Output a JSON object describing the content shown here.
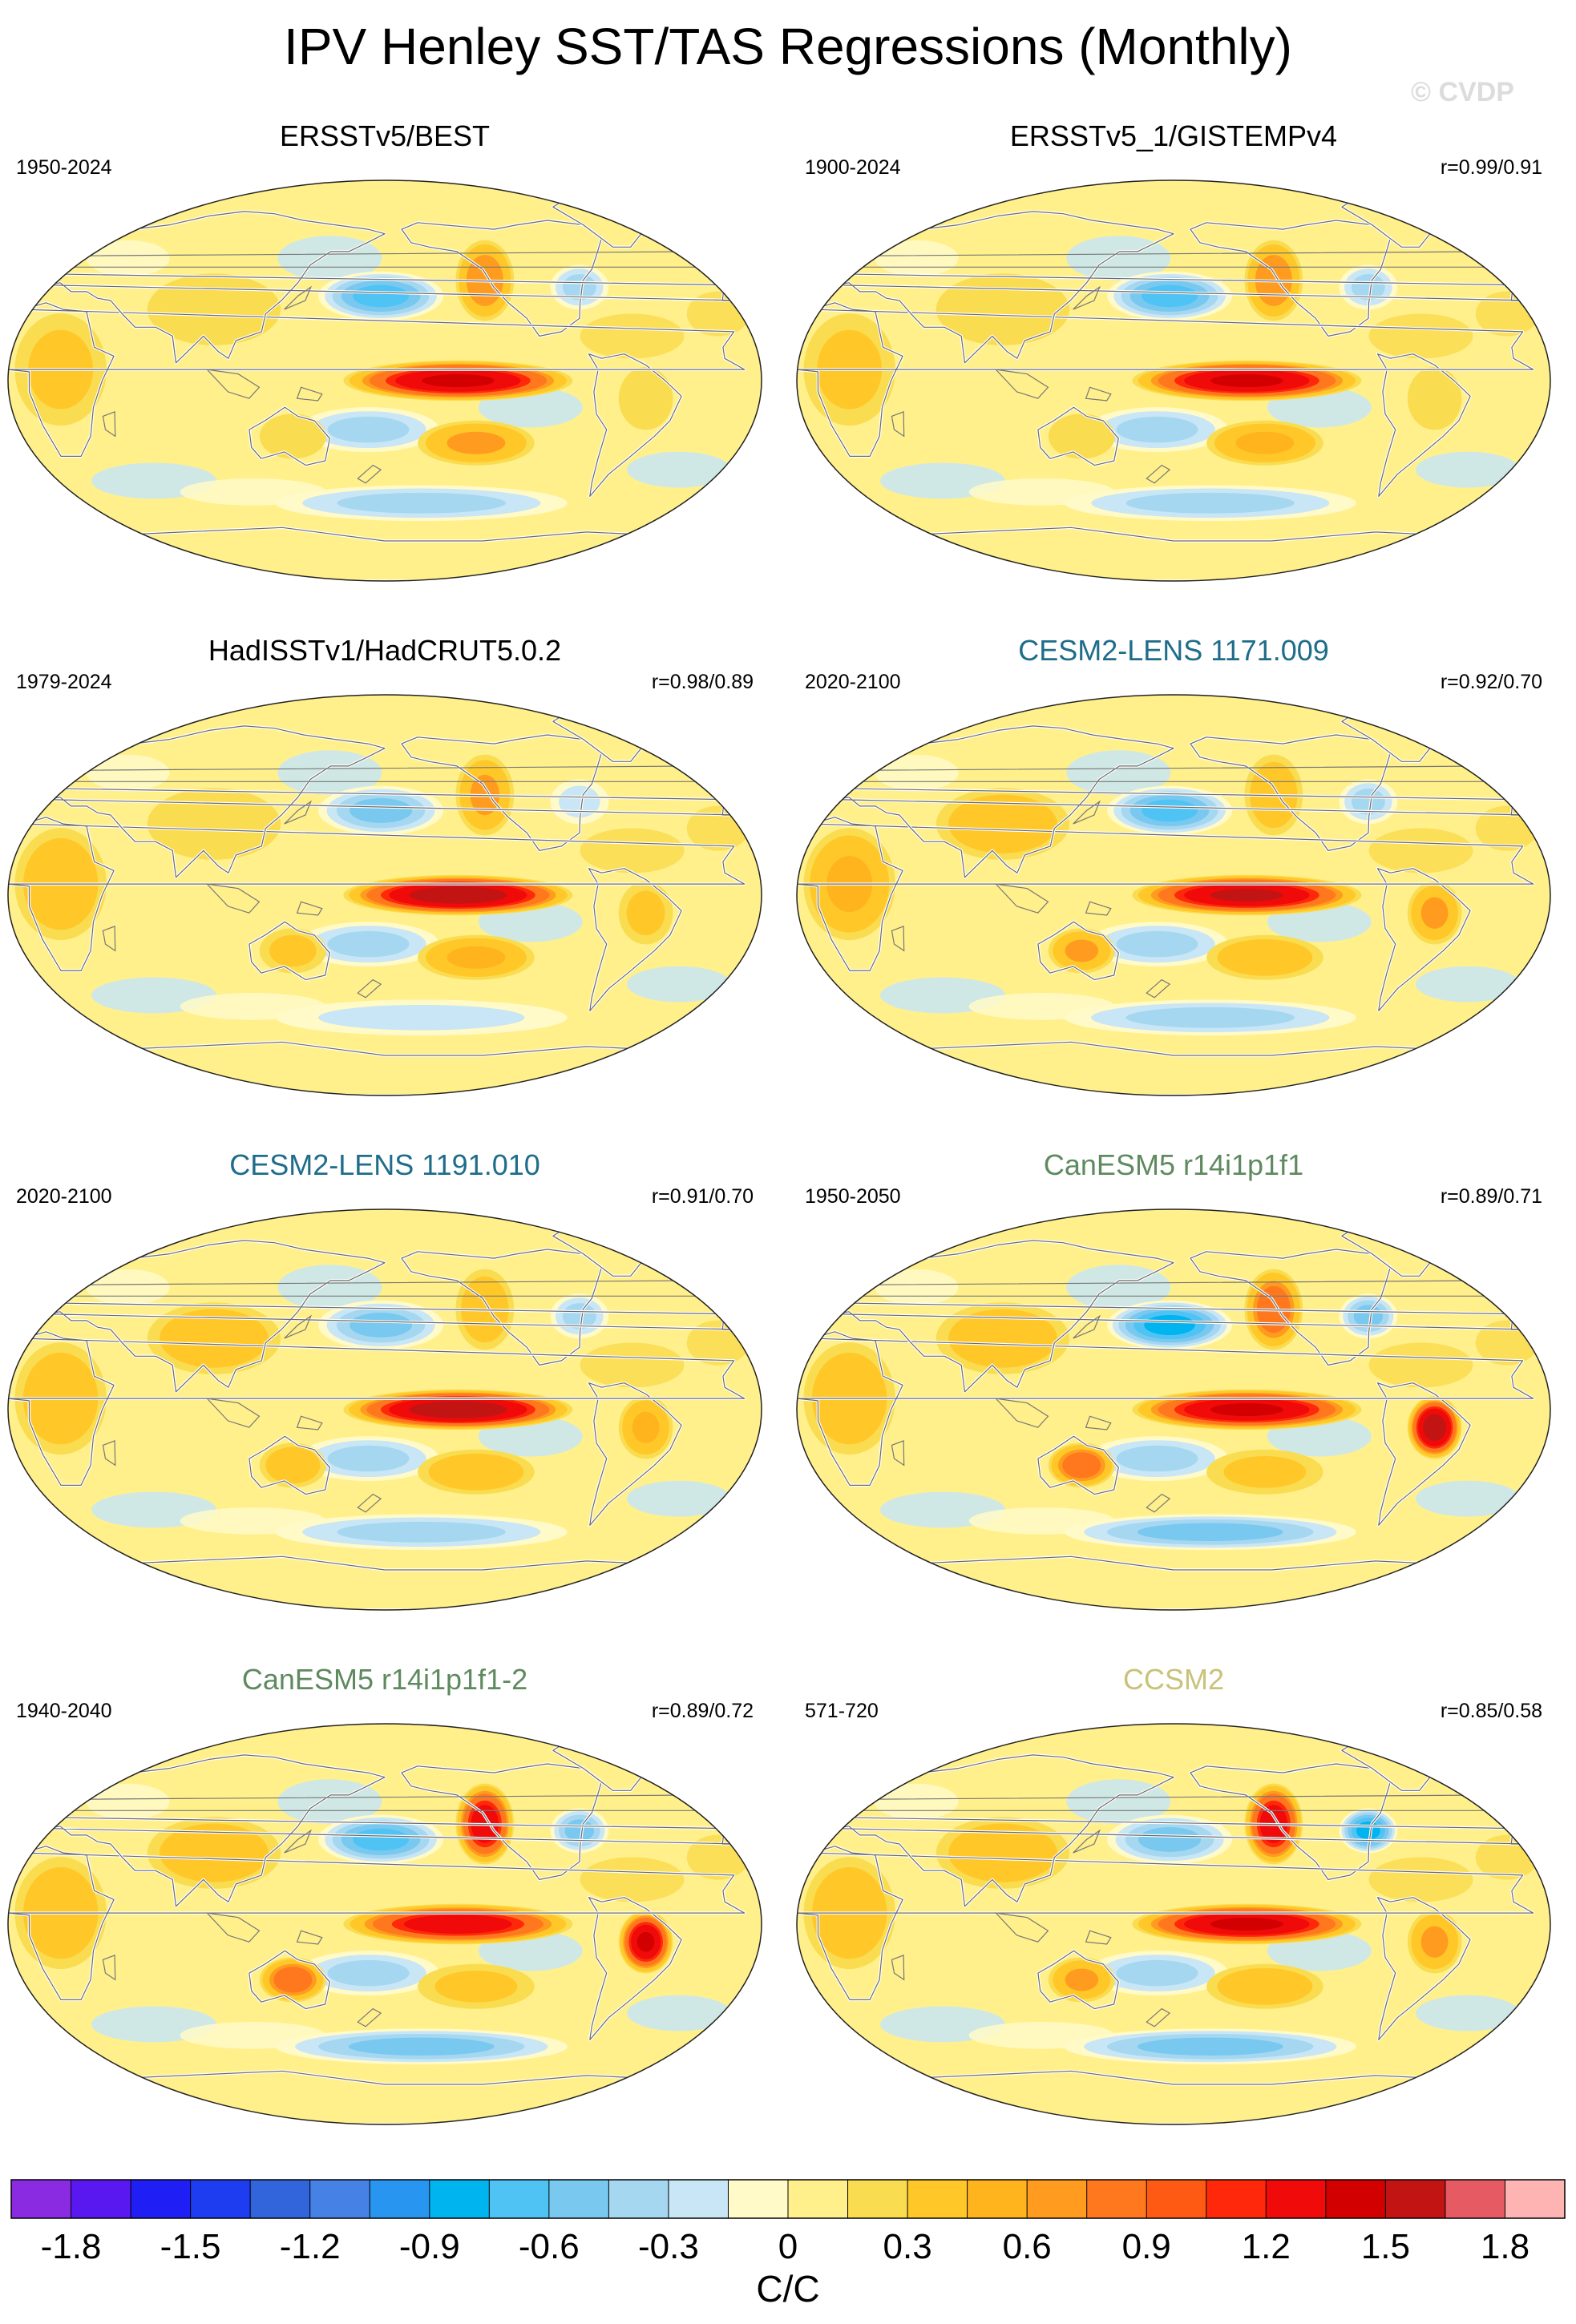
{
  "figure": {
    "title": "IPV Henley SST/TAS Regressions (Monthly)",
    "watermark": "© CVDP"
  },
  "chart_data": [
    {
      "type": "heatmap",
      "title": "ERSSTv5/BEST",
      "years": "1950-2024",
      "corr": "",
      "title_color": "#000000",
      "hot": {
        "nino": 1.45,
        "npac": 0.7,
        "spac": 0.6,
        "asia": 0.15,
        "aus": 0.25,
        "samer": 0.2,
        "africa": 0.3
      },
      "cold": {
        "kuro": -0.65,
        "sw": -0.45,
        "nam": -0.35,
        "so": -0.35
      }
    },
    {
      "type": "heatmap",
      "title": "ERSSTv5_1/GISTEMPv4",
      "years": "1900-2024",
      "corr": "r=0.99/0.91",
      "title_color": "#000000",
      "hot": {
        "nino": 1.35,
        "npac": 0.7,
        "spac": 0.55,
        "asia": 0.15,
        "aus": 0.25,
        "samer": 0.2,
        "africa": 0.3
      },
      "cold": {
        "kuro": -0.75,
        "sw": -0.45,
        "nam": -0.35,
        "so": -0.35
      }
    },
    {
      "type": "heatmap",
      "title": "HadISSTv1/HadCRUT5.0.2",
      "years": "1979-2024",
      "corr": "r=0.98/0.89",
      "title_color": "#000000",
      "hot": {
        "nino": 1.6,
        "npac": 0.6,
        "spac": 0.5,
        "asia": 0.25,
        "aus": 0.3,
        "samer": 0.3,
        "africa": 0.35
      },
      "cold": {
        "kuro": -0.5,
        "sw": -0.4,
        "nam": -0.2,
        "so": -0.3
      }
    },
    {
      "type": "heatmap",
      "title": "CESM2-LENS 1171.009",
      "years": "2020-2100",
      "corr": "r=0.92/0.70",
      "title_color": "#1e6d8a",
      "hot": {
        "nino": 1.5,
        "npac": 0.35,
        "spac": 0.4,
        "asia": 0.35,
        "aus": 0.6,
        "samer": 0.6,
        "africa": 0.5
      },
      "cold": {
        "kuro": -0.7,
        "sw": -0.35,
        "nam": -0.4,
        "so": -0.45
      }
    },
    {
      "type": "heatmap",
      "title": "CESM2-LENS 1191.010",
      "years": "2020-2100",
      "corr": "r=0.91/0.70",
      "title_color": "#1e6d8a",
      "hot": {
        "nino": 1.55,
        "npac": 0.45,
        "spac": 0.4,
        "asia": 0.4,
        "aus": 0.35,
        "samer": 0.5,
        "africa": 0.45
      },
      "cold": {
        "kuro": -0.55,
        "sw": -0.4,
        "nam": -0.4,
        "so": -0.4
      }
    },
    {
      "type": "heatmap",
      "title": "CanESM5 r14i1p1f1",
      "years": "1950-2050",
      "corr": "r=0.89/0.71",
      "title_color": "#5f8a5f",
      "hot": {
        "nino": 1.45,
        "npac": 0.9,
        "spac": 0.3,
        "asia": 0.4,
        "aus": 0.9,
        "samer": 1.6,
        "africa": 0.4
      },
      "cold": {
        "kuro": -0.9,
        "sw": -0.4,
        "nam": -0.5,
        "so": -0.55
      }
    },
    {
      "type": "heatmap",
      "title": "CanESM5 r14i1p1f1-2",
      "years": "1940-2040",
      "corr": "r=0.89/0.72",
      "title_color": "#5f8a5f",
      "hot": {
        "nino": 1.3,
        "npac": 1.25,
        "spac": 0.3,
        "asia": 0.4,
        "aus": 0.8,
        "samer": 1.4,
        "africa": 0.4
      },
      "cold": {
        "kuro": -0.75,
        "sw": -0.35,
        "nam": -0.5,
        "so": -0.6
      }
    },
    {
      "type": "heatmap",
      "title": "CCSM2",
      "years": "571-720",
      "corr": "r=0.85/0.58",
      "title_color": "#c9c27a",
      "hot": {
        "nino": 1.45,
        "npac": 1.3,
        "spac": 0.35,
        "asia": 0.35,
        "aus": 0.6,
        "samer": 0.6,
        "africa": 0.45
      },
      "cold": {
        "kuro": -0.5,
        "sw": -0.35,
        "nam": -0.9,
        "so": -0.5
      }
    }
  ],
  "colorbar": {
    "label": "C/C",
    "boundaries": [
      -2.0,
      -1.8,
      -1.65,
      -1.5,
      -1.35,
      -1.2,
      -1.05,
      -0.9,
      -0.75,
      -0.6,
      -0.45,
      -0.3,
      -0.15,
      0,
      0.15,
      0.3,
      0.45,
      0.6,
      0.75,
      0.9,
      1.05,
      1.2,
      1.35,
      1.5,
      1.65,
      1.8,
      2.0
    ],
    "tick_values": [
      -1.8,
      -1.5,
      -1.2,
      -0.9,
      -0.6,
      -0.3,
      0,
      0.3,
      0.6,
      0.9,
      1.2,
      1.5,
      1.8
    ],
    "tick_labels": [
      "-1.8",
      "-1.5",
      "-1.2",
      "-0.9",
      "-0.6",
      "-0.3",
      "0",
      "0.3",
      "0.6",
      "0.9",
      "1.2",
      "1.5",
      "1.8"
    ],
    "colors": [
      "#8a2be2",
      "#5a18f0",
      "#1e1ef5",
      "#1e3cf0",
      "#3264dc",
      "#4682e6",
      "#2896f0",
      "#00b4f0",
      "#50c3f5",
      "#78c8f0",
      "#a5d7f0",
      "#c8e6f5",
      "#fffac8",
      "#fff08c",
      "#fadc50",
      "#ffc828",
      "#ffb41e",
      "#ff9b1e",
      "#ff781e",
      "#ff5a14",
      "#ff280a",
      "#f00a0a",
      "#d20000",
      "#c31414",
      "#e65a64",
      "#ffb4b4"
    ]
  }
}
